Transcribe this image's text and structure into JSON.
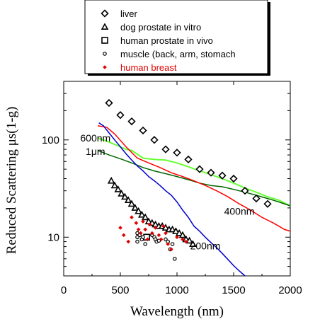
{
  "chart_data": {
    "type": "scatter",
    "xlabel": "Wavelength (nm)",
    "ylabel": "Reduced Scattering μs(1-g)",
    "xlim": [
      0,
      2000
    ],
    "ylim": [
      4,
      400
    ],
    "yscale": "log",
    "x_ticks": [
      "0",
      "500",
      "1000",
      "1500",
      "2000"
    ],
    "y_ticks": [
      "10",
      "100"
    ],
    "legend_position": "top",
    "legend": [
      {
        "label": "liver",
        "marker": "diamond",
        "color": "#000000"
      },
      {
        "label": "dog prostate in vitro",
        "marker": "triangle",
        "color": "#000000"
      },
      {
        "label": "human prostate in vivo",
        "marker": "square",
        "color": "#000000"
      },
      {
        "label": "muscle (back, arm, stomach",
        "marker": "circle",
        "color": "#000000"
      },
      {
        "label": "human breast",
        "marker": "dot-diamond",
        "color": "#e00000"
      }
    ],
    "series": [
      {
        "name": "liver",
        "marker": "diamond",
        "color": "#000000",
        "points": [
          [
            400,
            240
          ],
          [
            500,
            180
          ],
          [
            600,
            155
          ],
          [
            700,
            125
          ],
          [
            800,
            100
          ],
          [
            900,
            80
          ],
          [
            1000,
            74
          ],
          [
            1100,
            63
          ],
          [
            1200,
            50
          ],
          [
            1300,
            46
          ],
          [
            1400,
            43
          ],
          [
            1500,
            40
          ],
          [
            1600,
            30
          ],
          [
            1700,
            25
          ],
          [
            1800,
            22
          ]
        ]
      },
      {
        "name": "dog prostate in vitro",
        "marker": "triangle",
        "color": "#000000",
        "points": [
          [
            420,
            38
          ],
          [
            450,
            34
          ],
          [
            480,
            31
          ],
          [
            510,
            28
          ],
          [
            540,
            26
          ],
          [
            570,
            24
          ],
          [
            600,
            22
          ],
          [
            630,
            20
          ],
          [
            660,
            18.5
          ],
          [
            690,
            17
          ],
          [
            720,
            16
          ],
          [
            750,
            14.5
          ],
          [
            780,
            14
          ],
          [
            810,
            13.5
          ],
          [
            840,
            13
          ],
          [
            870,
            13
          ],
          [
            900,
            12.5
          ],
          [
            930,
            12
          ],
          [
            960,
            12
          ],
          [
            990,
            11.5
          ],
          [
            1020,
            11
          ],
          [
            1050,
            10.5
          ],
          [
            1080,
            9.5
          ],
          [
            1110,
            9.2
          ],
          [
            1140,
            8.5
          ]
        ]
      },
      {
        "name": "human prostate in vivo",
        "marker": "square",
        "color": "#000000",
        "points": [
          [
            732,
            10
          ]
        ]
      },
      {
        "name": "muscle (back, arm, stomach",
        "marker": "circle",
        "color": "#000000",
        "points": [
          [
            650,
            11
          ],
          [
            650,
            10
          ],
          [
            650,
            9
          ],
          [
            670,
            10.5
          ],
          [
            690,
            9.5
          ],
          [
            700,
            10
          ],
          [
            720,
            8.5
          ],
          [
            780,
            10.5
          ],
          [
            800,
            10
          ],
          [
            810,
            9.5
          ],
          [
            820,
            9
          ],
          [
            840,
            9.2
          ],
          [
            900,
            9.5
          ],
          [
            920,
            9
          ],
          [
            940,
            7.5
          ],
          [
            960,
            8.5
          ],
          [
            980,
            6
          ]
        ]
      },
      {
        "name": "human breast",
        "marker": "dot-diamond",
        "color": "#e00000",
        "points": [
          [
            500,
            12.5
          ],
          [
            530,
            10.5
          ],
          [
            570,
            9
          ],
          [
            600,
            16
          ],
          [
            640,
            14
          ],
          [
            660,
            12
          ],
          [
            680,
            11
          ],
          [
            700,
            14.5
          ],
          [
            720,
            12
          ],
          [
            740,
            9.5
          ],
          [
            760,
            13.5
          ],
          [
            780,
            11
          ],
          [
            810,
            12.5
          ],
          [
            840,
            10.5
          ],
          [
            860,
            9.5
          ],
          [
            880,
            13
          ],
          [
            900,
            11
          ],
          [
            920,
            8.5
          ],
          [
            950,
            7.5
          ],
          [
            1000,
            10
          ],
          [
            1050,
            9.5
          ],
          [
            1080,
            9
          ]
        ]
      }
    ],
    "lines": [
      {
        "name": "600nm",
        "color": "#66ff33",
        "width": 2,
        "points": [
          [
            300,
            105
          ],
          [
            400,
            95
          ],
          [
            500,
            85
          ],
          [
            550,
            80
          ],
          [
            600,
            78
          ],
          [
            700,
            65
          ],
          [
            800,
            63
          ],
          [
            900,
            62
          ],
          [
            1000,
            58
          ],
          [
            1100,
            53
          ],
          [
            1200,
            48
          ],
          [
            1300,
            44
          ],
          [
            1400,
            40
          ],
          [
            1500,
            36
          ],
          [
            1600,
            32
          ],
          [
            1700,
            29
          ],
          [
            1800,
            26
          ],
          [
            1900,
            24
          ],
          [
            2000,
            21
          ]
        ]
      },
      {
        "name": "1μm",
        "color": "#006600",
        "width": 1.5,
        "points": [
          [
            300,
            78
          ],
          [
            400,
            70
          ],
          [
            500,
            64
          ],
          [
            600,
            58
          ],
          [
            700,
            52
          ],
          [
            800,
            48
          ],
          [
            900,
            45
          ],
          [
            1000,
            42
          ],
          [
            1100,
            39
          ],
          [
            1200,
            36
          ],
          [
            1300,
            34
          ],
          [
            1400,
            33
          ],
          [
            1500,
            31
          ],
          [
            1600,
            29
          ],
          [
            1700,
            27
          ],
          [
            1800,
            25
          ],
          [
            1900,
            23
          ],
          [
            2000,
            21
          ]
        ]
      },
      {
        "name": "400nm",
        "color": "#ff0000",
        "width": 1.5,
        "points": [
          [
            300,
            140
          ],
          [
            380,
            135
          ],
          [
            450,
            115
          ],
          [
            550,
            85
          ],
          [
            650,
            65
          ],
          [
            750,
            58
          ],
          [
            850,
            52
          ],
          [
            950,
            46
          ],
          [
            1050,
            42
          ],
          [
            1150,
            38
          ],
          [
            1250,
            34
          ],
          [
            1350,
            30
          ],
          [
            1450,
            26
          ],
          [
            1550,
            22
          ],
          [
            1650,
            19
          ],
          [
            1750,
            16
          ],
          [
            1850,
            14
          ],
          [
            1950,
            12
          ],
          [
            2000,
            11.5
          ]
        ]
      },
      {
        "name": "200nm",
        "color": "#0000cc",
        "width": 1.5,
        "points": [
          [
            310,
            150
          ],
          [
            350,
            140
          ],
          [
            400,
            118
          ],
          [
            450,
            100
          ],
          [
            500,
            85
          ],
          [
            550,
            72
          ],
          [
            600,
            62
          ],
          [
            650,
            54
          ],
          [
            700,
            48
          ],
          [
            750,
            42
          ],
          [
            800,
            38
          ],
          [
            850,
            34
          ],
          [
            900,
            30
          ],
          [
            950,
            27
          ],
          [
            1000,
            23
          ],
          [
            1050,
            19
          ],
          [
            1100,
            16
          ],
          [
            1150,
            13
          ],
          [
            1200,
            11.5
          ],
          [
            1250,
            10
          ],
          [
            1300,
            8.8
          ],
          [
            1350,
            7.8
          ],
          [
            1400,
            6.8
          ],
          [
            1450,
            5.9
          ],
          [
            1500,
            5.1
          ],
          [
            1550,
            4.5
          ],
          [
            1600,
            4
          ]
        ]
      }
    ],
    "annotations": [
      {
        "text": "600nm",
        "x": 280,
        "y": 96,
        "color": "#000000"
      },
      {
        "text": "1μm",
        "x": 280,
        "y": 70,
        "color": "#000000"
      },
      {
        "text": "400nm",
        "x": 1550,
        "y": 17,
        "color": "#000000"
      },
      {
        "text": "200nm",
        "x": 1250,
        "y": 7.5,
        "color": "#000000"
      }
    ]
  }
}
